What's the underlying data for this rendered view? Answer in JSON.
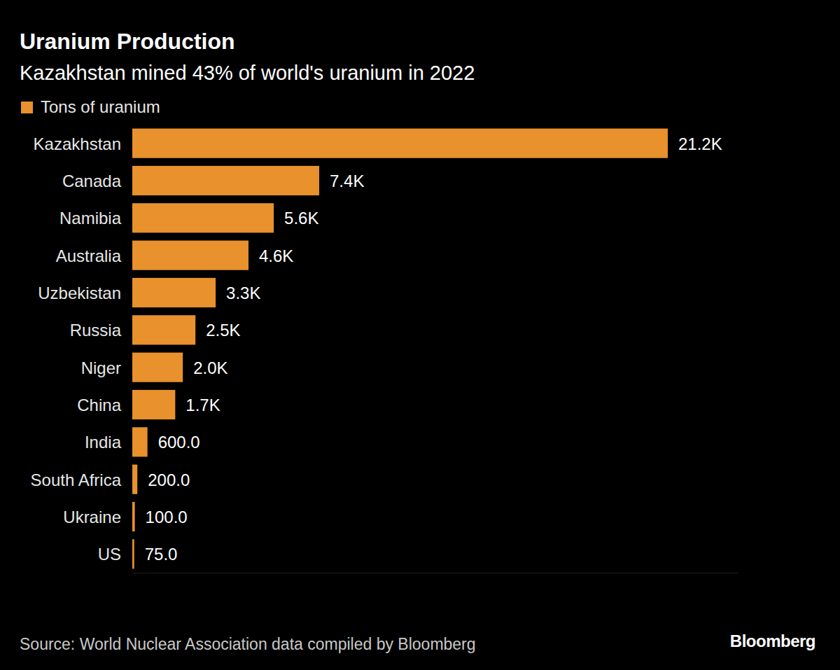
{
  "chart_data": {
    "type": "bar",
    "orientation": "horizontal",
    "title": "Uranium Production",
    "subtitle": "Kazakhstan mined 43% of world's uranium in 2022",
    "categories": [
      "Kazakhstan",
      "Canada",
      "Namibia",
      "Australia",
      "Uzbekistan",
      "Russia",
      "Niger",
      "China",
      "India",
      "South Africa",
      "Ukraine",
      "US"
    ],
    "series": [
      {
        "name": "Tons of uranium",
        "color": "#e8912d",
        "values": [
          21200,
          7400,
          5600,
          4600,
          3300,
          2500,
          2000,
          1700,
          600,
          200,
          100,
          75
        ],
        "value_labels": [
          "21.2K",
          "7.4K",
          "5.6K",
          "4.6K",
          "3.3K",
          "2.5K",
          "2.0K",
          "1.7K",
          "600.0",
          "200.0",
          "100.0",
          "75.0"
        ]
      }
    ],
    "xlim": [
      0,
      24000
    ],
    "data_labels": true,
    "tick_labels": "y",
    "grid": false,
    "legend": "top-left",
    "source": "Source: World Nuclear Association data compiled by Bloomberg",
    "credit": "Bloomberg"
  }
}
